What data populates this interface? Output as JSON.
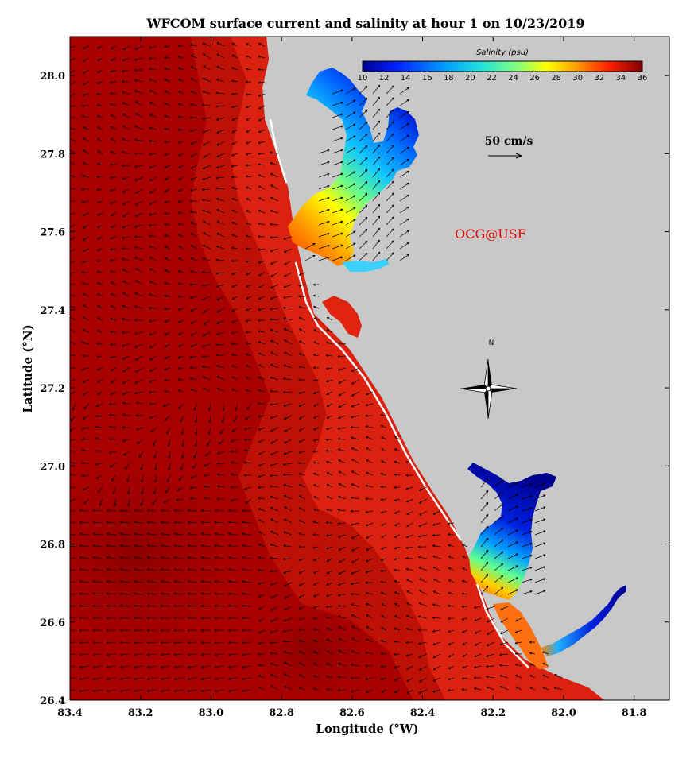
{
  "title": "WFCOM surface current and salinity at hour 1 on 10/23/2019",
  "x_axis": {
    "label": "Longitude (°W)",
    "ticks": [
      "83.4",
      "83.2",
      "83.0",
      "82.8",
      "82.6",
      "82.4",
      "82.2",
      "82.0",
      "81.8"
    ],
    "range": [
      83.4,
      81.7
    ]
  },
  "y_axis": {
    "label": "Latitude (°N)",
    "ticks": [
      "26.4",
      "26.6",
      "26.8",
      "27.0",
      "27.2",
      "27.4",
      "27.6",
      "27.8",
      "28.0"
    ],
    "range": [
      26.4,
      28.1
    ]
  },
  "colorbar": {
    "title": "Salinity (psu)",
    "ticks": [
      "10",
      "12",
      "14",
      "16",
      "18",
      "20",
      "22",
      "24",
      "26",
      "28",
      "30",
      "32",
      "34",
      "36"
    ],
    "range": [
      10,
      36
    ]
  },
  "vector_scale": {
    "label": "50 cm/s",
    "value_cm_s": 50
  },
  "credit": "OCG@USF",
  "north_arrow": {
    "label": "N"
  },
  "colors": {
    "land": "#c8c8c8",
    "ocean_offshore": "#a80000",
    "ocean_nearshore": "#e42010",
    "credit_text": "#e00000",
    "vectors": "#000000"
  }
}
